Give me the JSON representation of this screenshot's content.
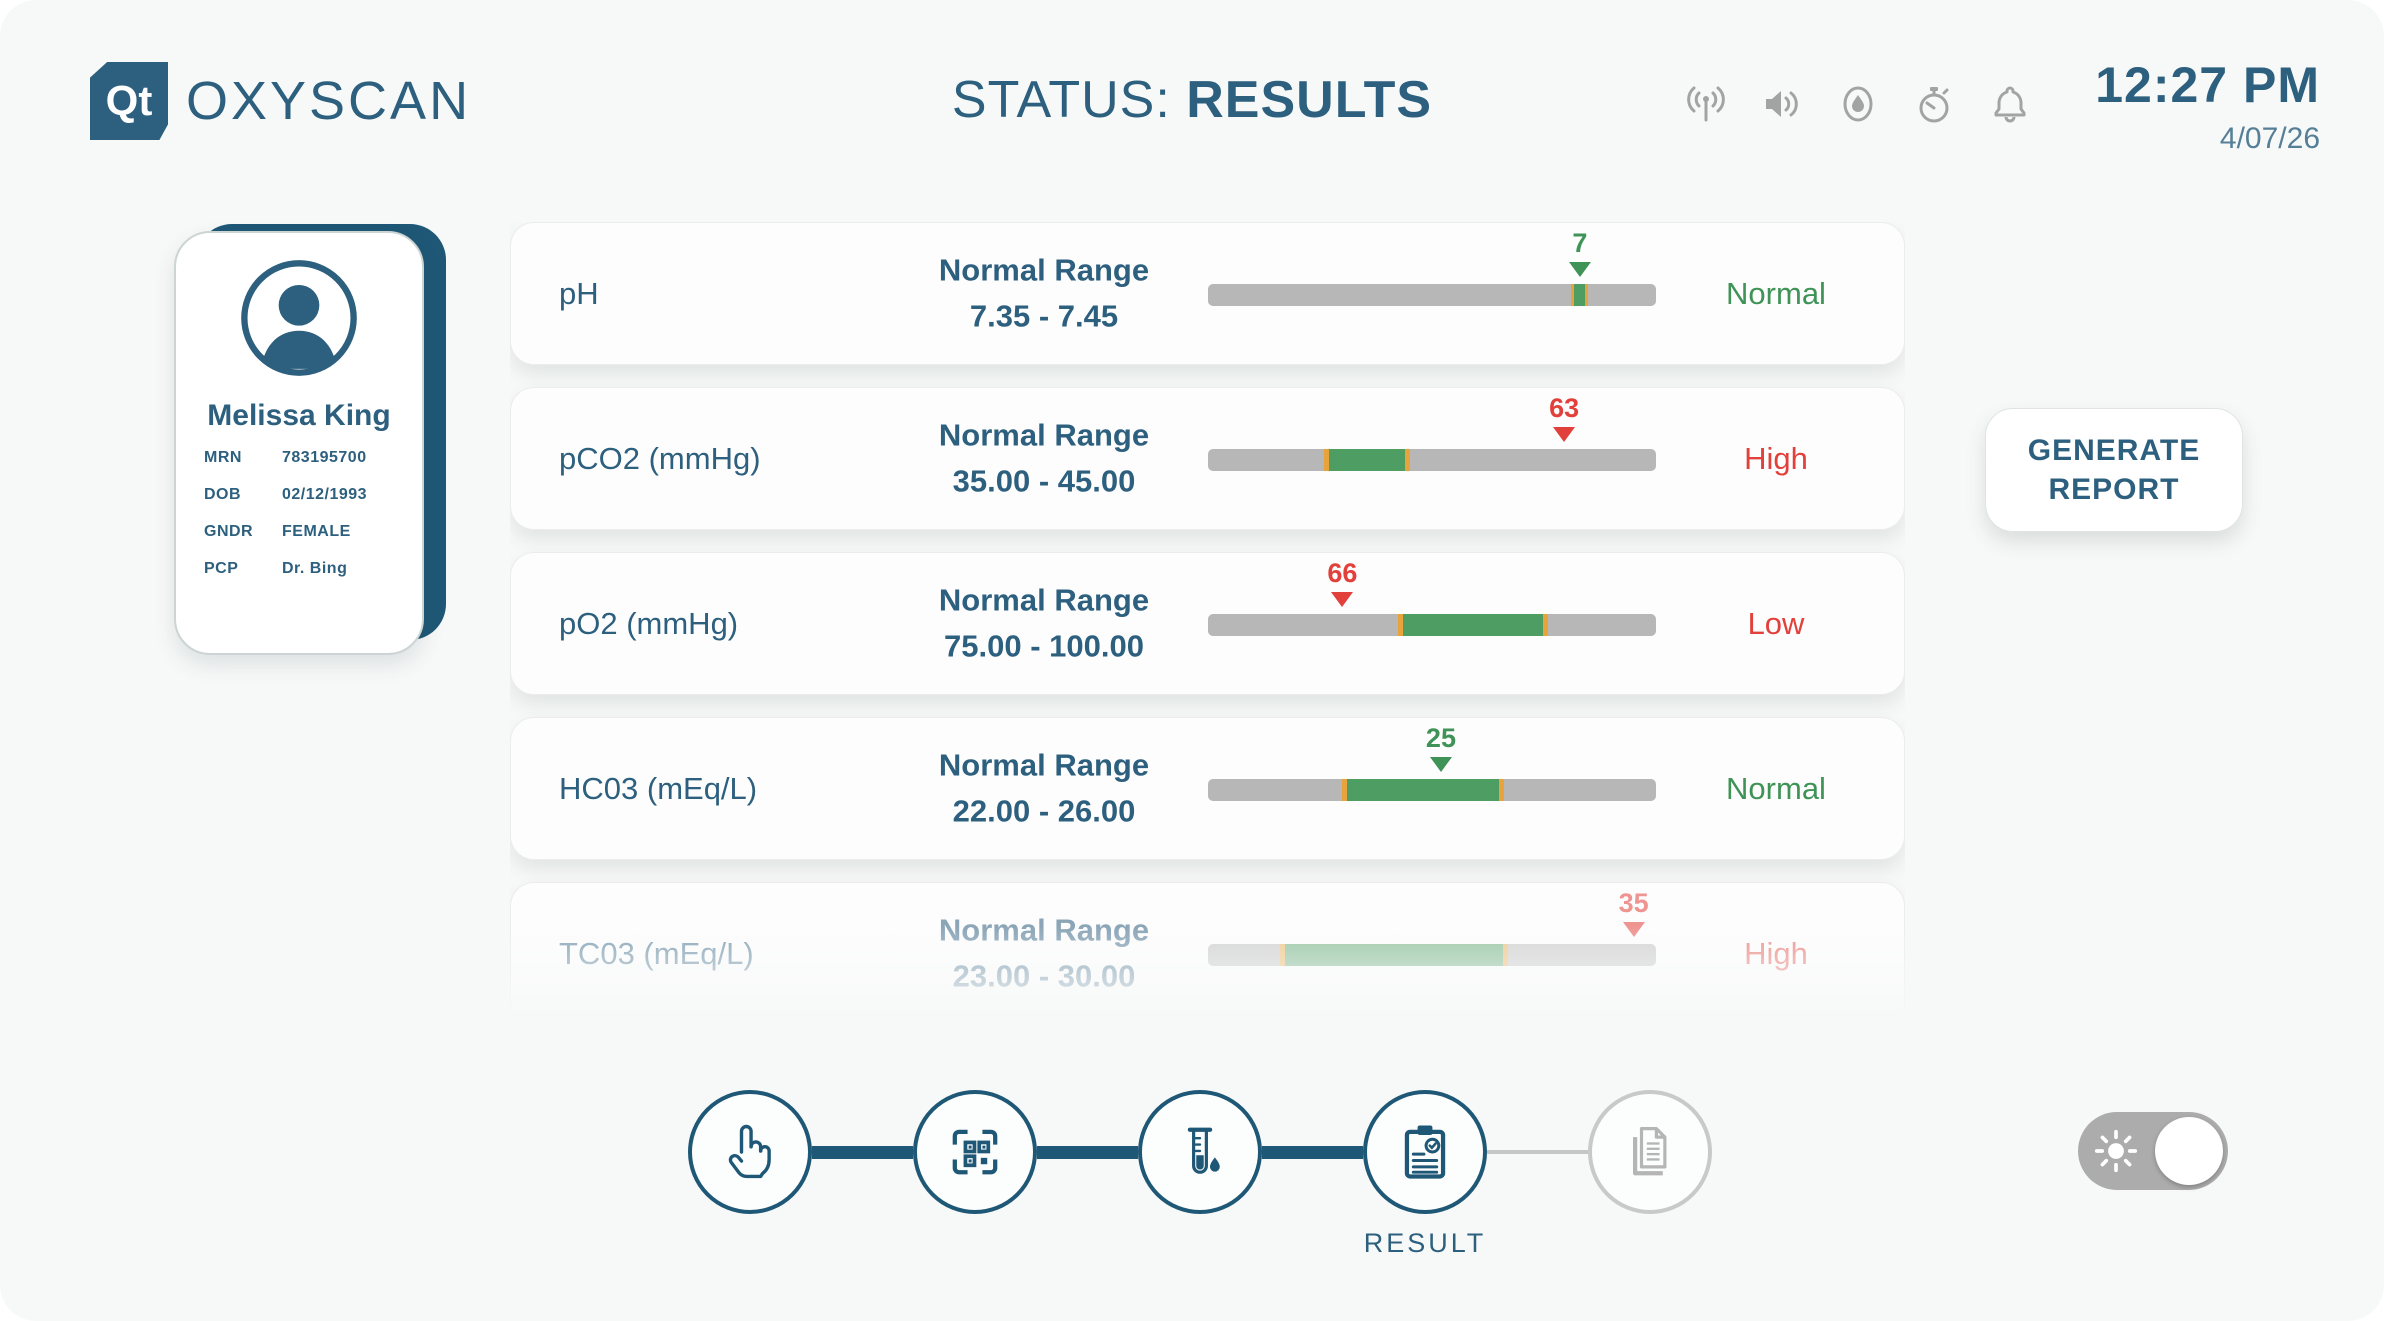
{
  "header": {
    "logo_badge": "Qt",
    "logo_text": "OXYSCAN",
    "status_prefix": "STATUS:",
    "status_value": "RESULTS",
    "time": "12:27 PM",
    "date": "4/07/26",
    "status_icons": [
      "broadcast-icon",
      "volume-icon",
      "water-drop-icon",
      "timer-icon",
      "bell-icon"
    ]
  },
  "patient": {
    "name": "Melissa King",
    "fields": [
      {
        "label": "MRN",
        "value": "783195700"
      },
      {
        "label": "DOB",
        "value": "02/12/1993"
      },
      {
        "label": "GNDR",
        "value": "FEMALE"
      },
      {
        "label": "PCP",
        "value": "Dr. Bing"
      }
    ]
  },
  "results": [
    {
      "analyte": "pH",
      "range_label": "Normal Range",
      "range": "7.35 - 7.45",
      "value": "7",
      "status": "Normal",
      "level": "normal",
      "marker_pct": 83,
      "band_start_pct": 81,
      "band_end_pct": 84.8,
      "faded": false
    },
    {
      "analyte": "pCO2 (mmHg)",
      "range_label": "Normal Range",
      "range": "35.00 - 45.00",
      "value": "63",
      "status": "High",
      "level": "high",
      "marker_pct": 79.5,
      "band_start_pct": 26,
      "band_end_pct": 45,
      "faded": false
    },
    {
      "analyte": "pO2 (mmHg)",
      "range_label": "Normal Range",
      "range": "75.00 - 100.00",
      "value": "66",
      "status": "Low",
      "level": "low",
      "marker_pct": 30,
      "band_start_pct": 42.5,
      "band_end_pct": 76,
      "faded": false
    },
    {
      "analyte": "HC03 (mEq/L)",
      "range_label": "Normal Range",
      "range": "22.00 - 26.00",
      "value": "25",
      "status": "Normal",
      "level": "normal",
      "marker_pct": 52,
      "band_start_pct": 30,
      "band_end_pct": 66,
      "faded": false
    },
    {
      "analyte": "TC03 (mEq/L)",
      "range_label": "Normal Range",
      "range": "23.00 - 30.00",
      "value": "35",
      "status": "High",
      "level": "high",
      "marker_pct": 95,
      "band_start_pct": 16,
      "band_end_pct": 67,
      "faded": true
    }
  ],
  "actions": {
    "generate_report_label": "GENERATE REPORT"
  },
  "stepper": {
    "steps": [
      {
        "icon": "touch-hand-icon",
        "label": "",
        "active": true
      },
      {
        "icon": "qr-code-icon",
        "label": "",
        "active": true
      },
      {
        "icon": "test-tube-icon",
        "label": "",
        "active": true
      },
      {
        "icon": "clipboard-result-icon",
        "label": "RESULT",
        "active": true
      },
      {
        "icon": "documents-icon",
        "label": "",
        "active": false
      }
    ]
  },
  "toggle": {
    "icon": "sun-icon",
    "state": "light"
  },
  "colors": {
    "accent": "#2d5f7e",
    "accent_deep": "#1f5876",
    "green": "#3f9357",
    "red": "#e2403a",
    "orange": "#e8a33d",
    "band_green": "#4e9e63",
    "bar_gray": "#b7b7b7",
    "icon_gray": "#a3a3a3",
    "bg": "#f7f9f8"
  }
}
